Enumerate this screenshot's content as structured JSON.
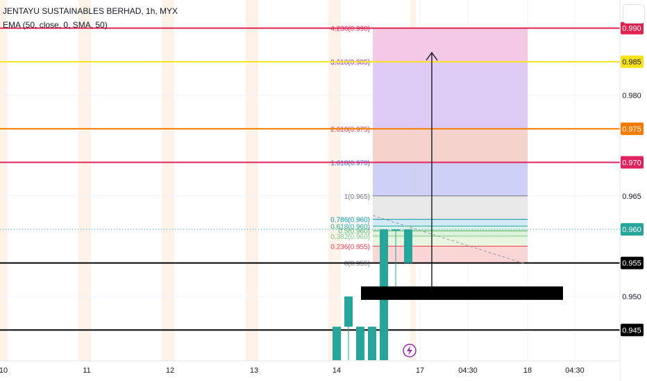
{
  "header": {
    "symbol_title": "JENTAYU SUSTAINABLES BERHAD, 1h, MYX",
    "indicator": "EMA (50, close, 0, SMA, 50)"
  },
  "chart_data": {
    "type": "candlestick",
    "title": "JENTAYU SUSTAINABLES BERHAD, 1h, MYX",
    "ylim": [
      0.9405,
      0.9942
    ],
    "price_ticks": [
      "0.980",
      "0.975",
      "0.970",
      "0.965",
      "0.950"
    ],
    "time_ticks": [
      "10",
      "11",
      "12",
      "13",
      "14",
      "17",
      "04:30",
      "18",
      "04:30"
    ],
    "horizontal_lines": [
      {
        "price": 0.99,
        "label": "0.990",
        "color": "#e0234e"
      },
      {
        "price": 0.985,
        "label": "0.985",
        "color": "#f9e21b"
      },
      {
        "price": 0.975,
        "label": "0.975",
        "color": "#f57c00"
      },
      {
        "price": 0.97,
        "label": "0.970",
        "color": "#e0235e"
      },
      {
        "price": 0.955,
        "label": "0.955",
        "color": "#000000"
      },
      {
        "price": 0.945,
        "label": "0.945",
        "color": "#000000"
      }
    ],
    "current_price": {
      "price": 0.96,
      "label": "0.960",
      "color": "#26a69a"
    },
    "fibonacci": [
      {
        "label": "4.236(0.990)",
        "price": 0.99,
        "color": "#e91e63"
      },
      {
        "label": "3.618(0.985)",
        "price": 0.985,
        "color": "#9c27b0"
      },
      {
        "label": "2.618(0.975)",
        "price": 0.975,
        "color": "#f23645"
      },
      {
        "label": "1.618(0.970)",
        "price": 0.97,
        "color": "#2962ff"
      },
      {
        "label": "1(0.965)",
        "price": 0.965,
        "color": "#787b86"
      },
      {
        "label": "0.786(0.960)",
        "price": 0.9615,
        "color": "#0097a7"
      },
      {
        "label": "0.618(0.960)",
        "price": 0.9605,
        "color": "#26a69a"
      },
      {
        "label": "0.5(0.960)",
        "price": 0.9598,
        "color": "#4caf50"
      },
      {
        "label": "0.382(0.960)",
        "price": 0.959,
        "color": "#81c784"
      },
      {
        "label": "0.236(0.955)",
        "price": 0.9575,
        "color": "#f23645"
      },
      {
        "label": "0(0.955)",
        "price": 0.955,
        "color": "#787b86"
      }
    ],
    "candles": [
      {
        "open": 0.9405,
        "high": 0.9455,
        "low": 0.9405,
        "close": 0.9455
      },
      {
        "open": 0.9455,
        "high": 0.95,
        "low": 0.9405,
        "close": 0.95
      },
      {
        "open": 0.9455,
        "high": 0.9455,
        "low": 0.9405,
        "close": 0.9405
      },
      {
        "open": 0.9405,
        "high": 0.9455,
        "low": 0.9405,
        "close": 0.9455
      },
      {
        "open": 0.9405,
        "high": 0.96,
        "low": 0.9405,
        "close": 0.96
      },
      {
        "open": 0.96,
        "high": 0.96,
        "low": 0.95,
        "close": 0.96
      },
      {
        "open": 0.955,
        "high": 0.96,
        "low": 0.955,
        "close": 0.96
      }
    ],
    "colors": {
      "up": "#26a69a",
      "grid": "#f0f3fa",
      "session": "#fde9d2"
    }
  }
}
